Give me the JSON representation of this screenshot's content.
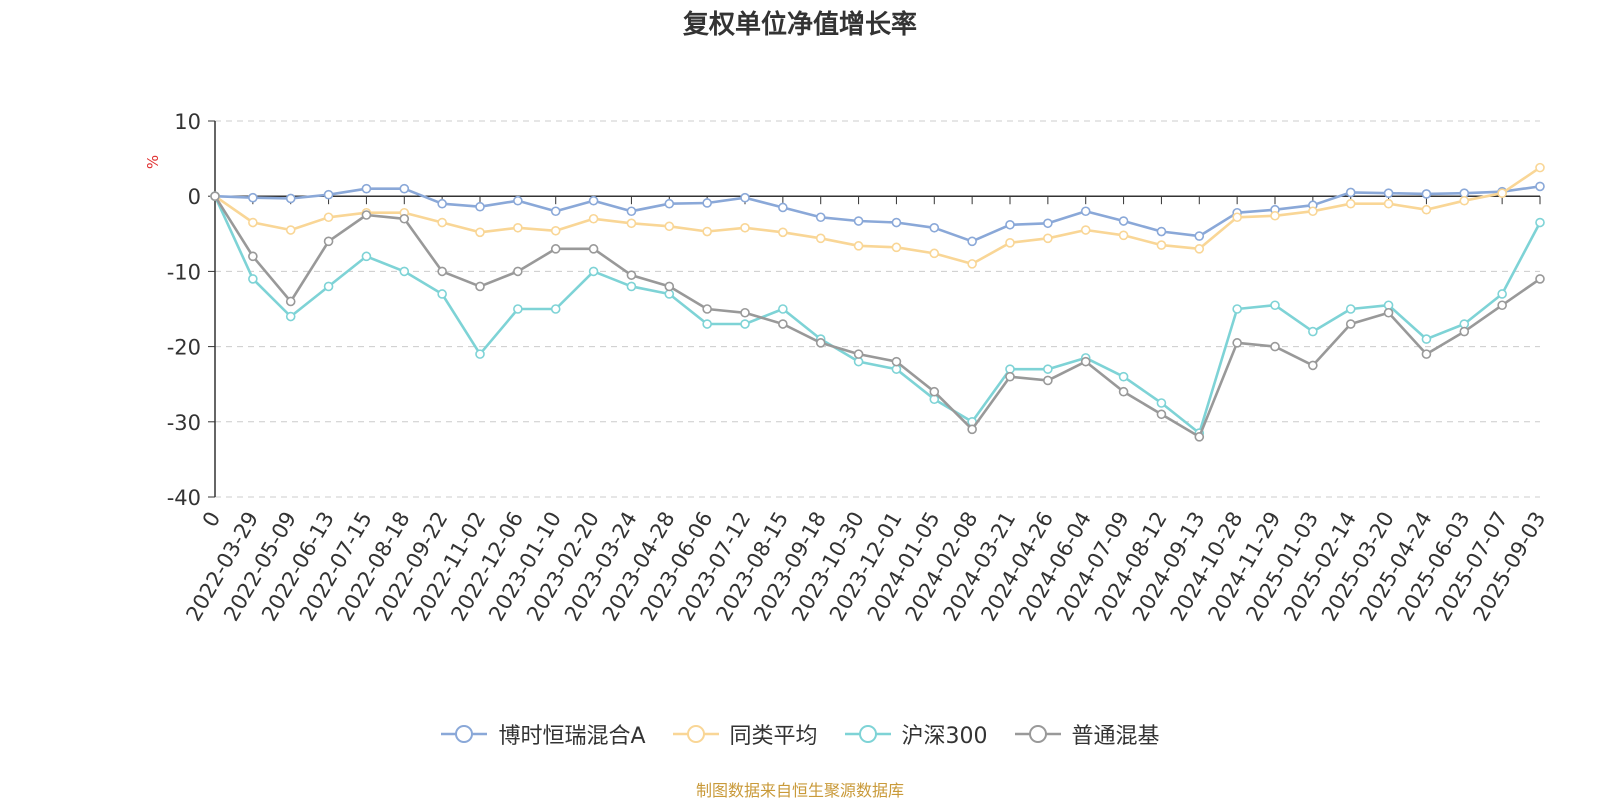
{
  "colors": {
    "fund": "#8aa8d8",
    "peer_avg": "#f9d696",
    "hs300": "#7ed3d6",
    "mixed": "#999999",
    "title": "#333333",
    "unit": "#e03030",
    "source": "#c99a3a",
    "grid": "#cccccc"
  },
  "chart_data": {
    "type": "line",
    "title": "复权单位净值增长率",
    "ylabel": "%",
    "ylim": [
      -40,
      10
    ],
    "yticks": [
      10,
      0,
      -10,
      -20,
      -30,
      -40
    ],
    "x_tick_labels": [
      "0",
      "2022-03-29",
      "2022-05-09",
      "2022-06-13",
      "2022-07-15",
      "2022-08-18",
      "2022-09-22",
      "2022-11-02",
      "2022-12-06",
      "2023-01-10",
      "2023-02-20",
      "2023-03-24",
      "2023-04-28",
      "2023-06-06",
      "2023-07-12",
      "2023-08-15",
      "2023-09-18",
      "2023-10-30",
      "2023-12-01",
      "2024-01-05",
      "2024-02-08",
      "2024-03-21",
      "2024-04-26",
      "2024-06-04",
      "2024-07-09",
      "2024-08-12",
      "2024-09-13",
      "2024-10-28",
      "2024-11-29",
      "2025-01-03",
      "2025-02-14",
      "2025-03-20",
      "2025-04-24",
      "2025-06-03",
      "2025-07-07",
      "2025-09-03"
    ],
    "x": [
      "0",
      "2022-03-29",
      "2022-05-09",
      "2022-06-13",
      "2022-07-15",
      "2022-08-18",
      "2022-09-22",
      "2022-11-02",
      "2022-12-06",
      "2023-01-10",
      "2023-02-20",
      "2023-03-24",
      "2023-04-28",
      "2023-06-06",
      "2023-07-12",
      "2023-08-15",
      "2023-09-18",
      "2023-10-30",
      "2023-12-01",
      "2024-01-05",
      "2024-02-08",
      "2024-03-21",
      "2024-04-26",
      "2024-06-04",
      "2024-07-09",
      "2024-08-12",
      "2024-09-13",
      "2024-10-28",
      "2024-11-29",
      "2025-01-03",
      "2025-02-14",
      "2025-03-20",
      "2025-04-24",
      "2025-06-03",
      "2025-07-07",
      "2025-09-03"
    ],
    "series": [
      {
        "name": "博时恒瑞混合A",
        "color": "#8aa8d8",
        "values": [
          0,
          -0.2,
          -0.3,
          0.2,
          1,
          1,
          -1,
          -1.4,
          -0.6,
          -2,
          -0.6,
          -2,
          -1,
          -0.9,
          -0.2,
          -1.5,
          -2.8,
          -3.3,
          -3.5,
          -4.2,
          -6,
          -3.8,
          -3.6,
          -2,
          -3.3,
          -4.7,
          -5.3,
          -2.2,
          -1.8,
          -1.2,
          0.5,
          0.4,
          0.3,
          0.4,
          0.6,
          1.3
        ]
      },
      {
        "name": "同类平均",
        "color": "#f9d696",
        "values": [
          0,
          -3.5,
          -4.5,
          -2.8,
          -2.2,
          -2.2,
          -3.5,
          -4.8,
          -4.2,
          -4.6,
          -3,
          -3.6,
          -4,
          -4.7,
          -4.2,
          -4.8,
          -5.6,
          -6.6,
          -6.8,
          -7.6,
          -9,
          -6.2,
          -5.6,
          -4.5,
          -5.2,
          -6.5,
          -7,
          -2.8,
          -2.6,
          -2,
          -1,
          -1,
          -1.8,
          -0.6,
          0.4,
          3.8
        ]
      },
      {
        "name": "沪深300",
        "color": "#7ed3d6",
        "values": [
          0,
          -11,
          -16,
          -12,
          -8,
          -10,
          -13,
          -21,
          -15,
          -15,
          -10,
          -12,
          -13,
          -17,
          -17,
          -15,
          -19,
          -22,
          -23,
          -27,
          -30,
          -23,
          -23,
          -21.5,
          -24,
          -27.5,
          -31.5,
          -15,
          -14.5,
          -18,
          -15,
          -14.5,
          -19,
          -17,
          -13,
          -3.5
        ]
      },
      {
        "name": "普通混基",
        "color": "#999999",
        "values": [
          0,
          -8,
          -14,
          -6,
          -2.5,
          -3,
          -10,
          -12,
          -10,
          -7,
          -7,
          -10.5,
          -12,
          -15,
          -15.5,
          -17,
          -19.5,
          -21,
          -22,
          -26,
          -31,
          -24,
          -24.5,
          -22,
          -26,
          -29,
          -32,
          -19.5,
          -20,
          -22.5,
          -17,
          -15.5,
          -21,
          -18,
          -14.5,
          -11
        ]
      }
    ],
    "legend_position": "bottom",
    "grid": true
  },
  "legend": {
    "items": [
      "博时恒瑞混合A",
      "同类平均",
      "沪深300",
      "普通混基"
    ]
  },
  "source_note": "制图数据来自恒生聚源数据库"
}
